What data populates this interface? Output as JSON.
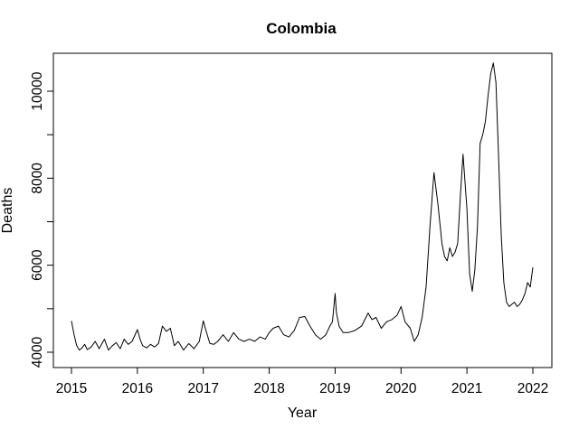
{
  "chart_data": {
    "type": "line",
    "title": "Colombia",
    "xlabel": "Year",
    "ylabel": "Deaths",
    "xlim": [
      2015.0,
      2022.0
    ],
    "ylim": [
      4000,
      10800
    ],
    "x_ticks": [
      2015,
      2016,
      2017,
      2018,
      2019,
      2020,
      2021,
      2022
    ],
    "x_tick_labels": [
      "2015",
      "2016",
      "2017",
      "2018",
      "2019",
      "2020",
      "2021",
      "2022"
    ],
    "y_ticks": [
      4000,
      6000,
      8000,
      10000
    ],
    "y_tick_labels": [
      "4000",
      "6000",
      "8000",
      "10000"
    ],
    "grid": false,
    "legend": "none",
    "line_color": "#000000",
    "series": [
      {
        "x": [
          2015.0,
          2015.04,
          2015.08,
          2015.12,
          2015.16,
          2015.2,
          2015.24,
          2015.3,
          2015.36,
          2015.42,
          2015.5,
          2015.56,
          2015.62,
          2015.68,
          2015.74,
          2015.8,
          2015.86,
          2015.92,
          2016.0,
          2016.04,
          2016.08,
          2016.14,
          2016.2,
          2016.26,
          2016.32,
          2016.38,
          2016.44,
          2016.5,
          2016.56,
          2016.62,
          2016.7,
          2016.78,
          2016.86,
          2016.94,
          2017.0,
          2017.04,
          2017.1,
          2017.16,
          2017.22,
          2017.3,
          2017.38,
          2017.46,
          2017.54,
          2017.62,
          2017.7,
          2017.78,
          2017.86,
          2017.94,
          2018.0,
          2018.06,
          2018.14,
          2018.22,
          2018.3,
          2018.38,
          2018.46,
          2018.54,
          2018.62,
          2018.7,
          2018.78,
          2018.86,
          2018.92,
          2018.96,
          2019.0,
          2019.02,
          2019.06,
          2019.12,
          2019.2,
          2019.3,
          2019.4,
          2019.5,
          2019.56,
          2019.62,
          2019.7,
          2019.78,
          2019.86,
          2019.94,
          2020.0,
          2020.06,
          2020.14,
          2020.2,
          2020.26,
          2020.32,
          2020.38,
          2020.44,
          2020.5,
          2020.56,
          2020.62,
          2020.66,
          2020.7,
          2020.74,
          2020.78,
          2020.82,
          2020.86,
          2020.9,
          2020.94,
          2021.0,
          2021.04,
          2021.08,
          2021.12,
          2021.16,
          2021.2,
          2021.24,
          2021.28,
          2021.32,
          2021.36,
          2021.4,
          2021.44,
          2021.48,
          2021.52,
          2021.56,
          2021.6,
          2021.64,
          2021.68,
          2021.72,
          2021.76,
          2021.8,
          2021.84,
          2021.88,
          2021.92,
          2021.96,
          2022.0
        ],
        "values": [
          4720,
          4400,
          4150,
          4050,
          4100,
          4180,
          4060,
          4120,
          4250,
          4080,
          4300,
          4050,
          4150,
          4220,
          4080,
          4300,
          4180,
          4250,
          4520,
          4300,
          4150,
          4100,
          4180,
          4120,
          4200,
          4600,
          4480,
          4550,
          4150,
          4250,
          4050,
          4200,
          4080,
          4250,
          4720,
          4500,
          4200,
          4180,
          4250,
          4400,
          4250,
          4450,
          4300,
          4250,
          4300,
          4250,
          4350,
          4300,
          4450,
          4550,
          4600,
          4400,
          4350,
          4500,
          4800,
          4820,
          4600,
          4400,
          4300,
          4400,
          4600,
          4700,
          5350,
          4900,
          4600,
          4450,
          4450,
          4500,
          4600,
          4900,
          4750,
          4800,
          4550,
          4700,
          4750,
          4850,
          5050,
          4700,
          4550,
          4250,
          4400,
          4800,
          5500,
          6900,
          8130,
          7400,
          6500,
          6200,
          6100,
          6400,
          6200,
          6300,
          6500,
          7600,
          8550,
          7300,
          5800,
          5400,
          5900,
          6900,
          8800,
          9000,
          9300,
          9900,
          10400,
          10650,
          10200,
          8500,
          6700,
          5600,
          5150,
          5050,
          5100,
          5150,
          5050,
          5100,
          5200,
          5350,
          5600,
          5500,
          5950
        ]
      }
    ]
  }
}
